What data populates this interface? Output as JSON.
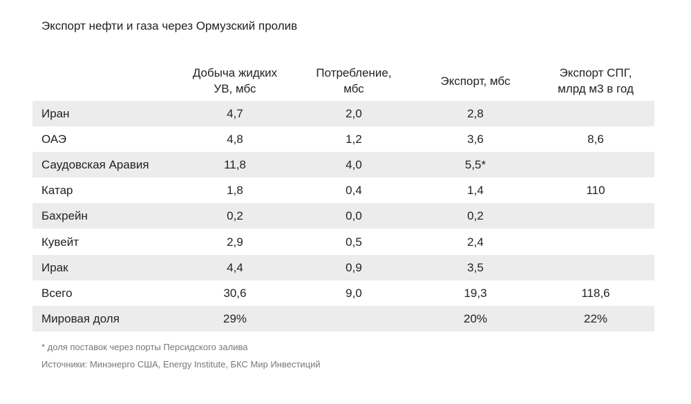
{
  "title": "Экспорт нефти и газа через Ормузский пролив",
  "table": {
    "header": [
      null,
      "Добыча жидких УВ, мбс",
      "Потребление, мбс",
      "Экспорт, мбс",
      "Экспорт СПГ, млрд м3 в год"
    ],
    "rows": [
      [
        "Иран",
        "4,7",
        "2,0",
        "2,8",
        null
      ],
      [
        "ОАЭ",
        "4,8",
        "1,2",
        "3,6",
        "8,6"
      ],
      [
        "Саудовская Аравия",
        "11,8",
        "4,0",
        "5,5*",
        null
      ],
      [
        "Катар",
        "1,8",
        "0,4",
        "1,4",
        "110"
      ],
      [
        "Бахрейн",
        "0,2",
        "0,0",
        "0,2",
        null
      ],
      [
        "Кувейт",
        "2,9",
        "0,5",
        "2,4",
        null
      ],
      [
        "Ирак",
        "4,4",
        "0,9",
        "3,5",
        null
      ],
      [
        "Всего",
        "30,6",
        "9,0",
        "19,3",
        "118,6"
      ],
      [
        "Мировая доля",
        "29%",
        null,
        "20%",
        "22%"
      ]
    ]
  },
  "footnote": "* доля поставок через порты Персидского залива",
  "sources": "Источники: Минэнерго США, Energy Institute, БКС Мир Инвестиций"
}
